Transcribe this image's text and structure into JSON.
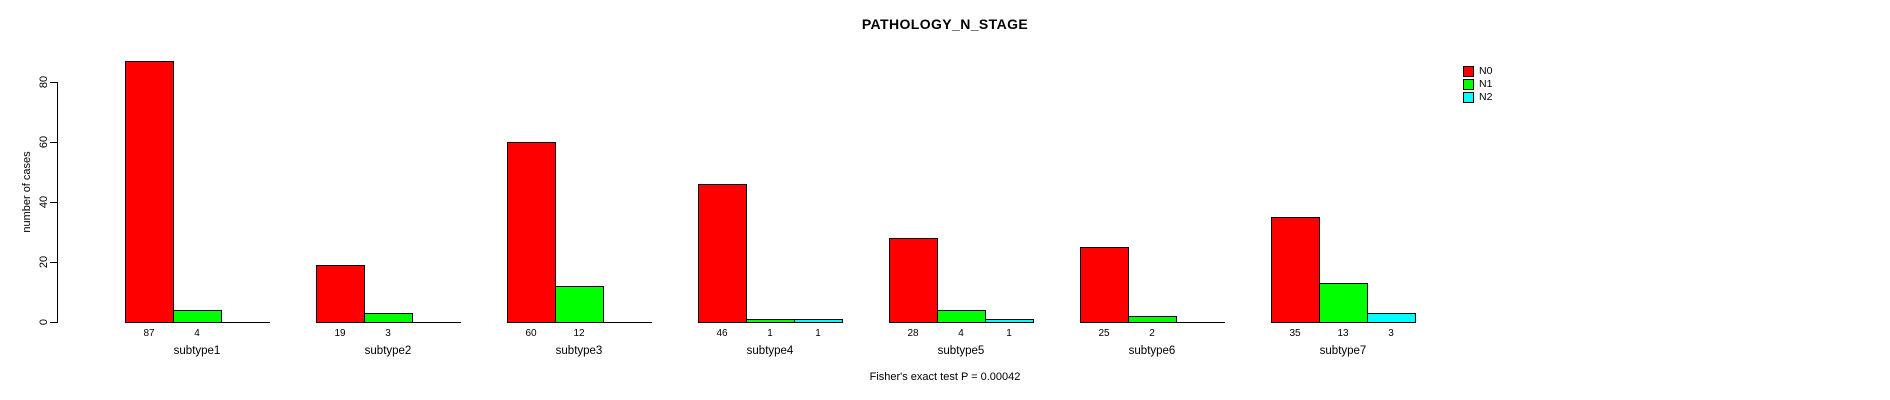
{
  "title": "PATHOLOGY_N_STAGE",
  "footnote": "Fisher's exact test P = 0.00042",
  "legend": {
    "items": [
      {
        "label": "N0",
        "color": "#ff0000"
      },
      {
        "label": "N1",
        "color": "#00ff00"
      },
      {
        "label": "N2",
        "color": "#00ffff"
      }
    ]
  },
  "chart_data": {
    "type": "bar",
    "title": "PATHOLOGY_N_STAGE",
    "xlabel": "",
    "ylabel": "number of cases",
    "yticks": [
      0,
      20,
      40,
      60,
      80
    ],
    "ylim": [
      0,
      88
    ],
    "grid": false,
    "legend_position": "top-right",
    "bar_border_color": "#000000",
    "categories": [
      "subtype1",
      "subtype2",
      "subtype3",
      "subtype4",
      "subtype5",
      "subtype6",
      "subtype7"
    ],
    "series": [
      {
        "name": "N0",
        "color": "#ff0000",
        "values": [
          87,
          19,
          60,
          46,
          28,
          25,
          35
        ]
      },
      {
        "name": "N1",
        "color": "#00ff00",
        "values": [
          4,
          3,
          12,
          1,
          4,
          2,
          13
        ]
      },
      {
        "name": "N2",
        "color": "#00ffff",
        "values": [
          0,
          0,
          0,
          1,
          1,
          0,
          3
        ]
      }
    ],
    "bar_value_labels_shown_when": "value > 0",
    "annotation": "Fisher's exact test P = 0.00042"
  }
}
